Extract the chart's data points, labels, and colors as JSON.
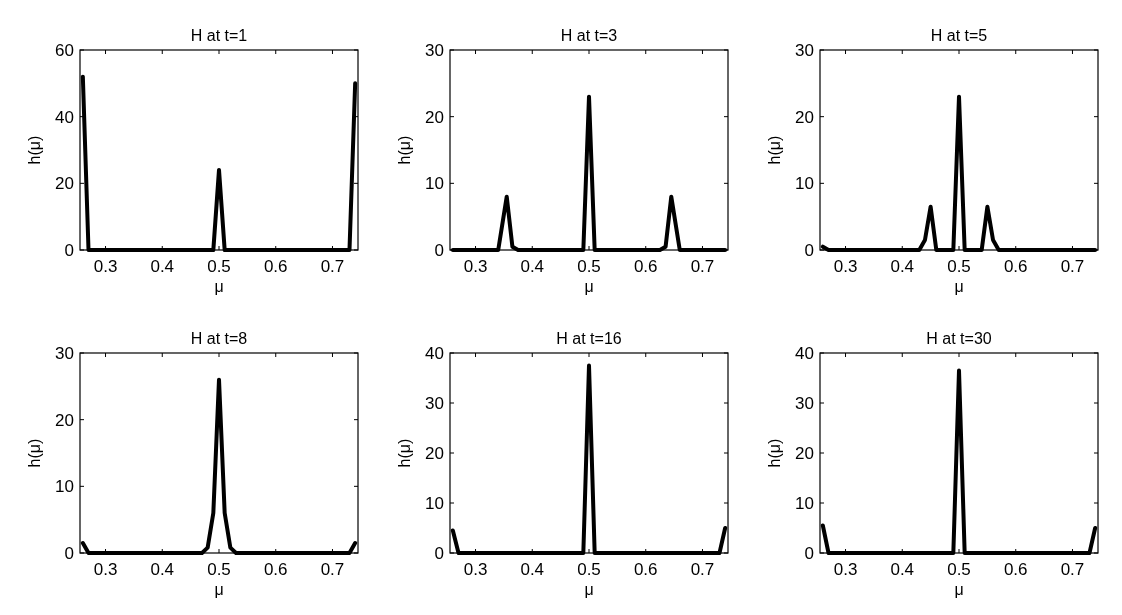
{
  "chart_data": [
    {
      "type": "line",
      "title": "H at t=1",
      "xlabel": "μ",
      "ylabel": "h(μ)",
      "xlim": [
        0.255,
        0.745
      ],
      "xticks": [
        0.3,
        0.4,
        0.5,
        0.6,
        0.7
      ],
      "ylim": [
        0,
        60
      ],
      "yticks": [
        0,
        20,
        40,
        60
      ],
      "series": [
        {
          "color": "#000000",
          "x": [
            0.26,
            0.27,
            0.49,
            0.5,
            0.51,
            0.73,
            0.74
          ],
          "values": [
            52,
            0,
            0,
            24,
            0,
            0,
            50
          ]
        }
      ]
    },
    {
      "type": "line",
      "title": "H at t=3",
      "xlabel": "μ",
      "ylabel": "h(μ)",
      "xlim": [
        0.255,
        0.745
      ],
      "xticks": [
        0.3,
        0.4,
        0.5,
        0.6,
        0.7
      ],
      "ylim": [
        0,
        30
      ],
      "yticks": [
        0,
        10,
        20,
        30
      ],
      "series": [
        {
          "color": "#000000",
          "x": [
            0.26,
            0.34,
            0.355,
            0.365,
            0.375,
            0.49,
            0.5,
            0.51,
            0.625,
            0.635,
            0.645,
            0.66,
            0.74
          ],
          "values": [
            0,
            0,
            8,
            0.5,
            0,
            0,
            23,
            0,
            0,
            0.5,
            8,
            0,
            0
          ]
        }
      ]
    },
    {
      "type": "line",
      "title": "H at t=5",
      "xlabel": "μ",
      "ylabel": "h(μ)",
      "xlim": [
        0.255,
        0.745
      ],
      "xticks": [
        0.3,
        0.4,
        0.5,
        0.6,
        0.7
      ],
      "ylim": [
        0,
        30
      ],
      "yticks": [
        0,
        10,
        20,
        30
      ],
      "series": [
        {
          "color": "#000000",
          "x": [
            0.26,
            0.27,
            0.43,
            0.44,
            0.45,
            0.46,
            0.49,
            0.5,
            0.51,
            0.54,
            0.55,
            0.56,
            0.57,
            0.74
          ],
          "values": [
            0.5,
            0,
            0,
            1.5,
            6.5,
            0,
            0,
            23,
            0,
            0,
            6.5,
            1.5,
            0,
            0
          ]
        }
      ]
    },
    {
      "type": "line",
      "title": "H at t=8",
      "xlabel": "μ",
      "ylabel": "h(μ)",
      "xlim": [
        0.255,
        0.745
      ],
      "xticks": [
        0.3,
        0.4,
        0.5,
        0.6,
        0.7
      ],
      "ylim": [
        0,
        30
      ],
      "yticks": [
        0,
        10,
        20,
        30
      ],
      "series": [
        {
          "color": "#000000",
          "x": [
            0.26,
            0.27,
            0.47,
            0.48,
            0.49,
            0.5,
            0.51,
            0.52,
            0.53,
            0.73,
            0.74
          ],
          "values": [
            1.5,
            0,
            0,
            0.8,
            6,
            26,
            6,
            0.8,
            0,
            0,
            1.5
          ]
        }
      ]
    },
    {
      "type": "line",
      "title": "H at t=16",
      "xlabel": "μ",
      "ylabel": "h(μ)",
      "xlim": [
        0.255,
        0.745
      ],
      "xticks": [
        0.3,
        0.4,
        0.5,
        0.6,
        0.7
      ],
      "ylim": [
        0,
        40
      ],
      "yticks": [
        0,
        10,
        20,
        30,
        40
      ],
      "series": [
        {
          "color": "#000000",
          "x": [
            0.26,
            0.27,
            0.49,
            0.5,
            0.51,
            0.73,
            0.74
          ],
          "values": [
            4.5,
            0,
            0,
            37.5,
            0,
            0,
            5
          ]
        }
      ]
    },
    {
      "type": "line",
      "title": "H at t=30",
      "xlabel": "μ",
      "ylabel": "h(μ)",
      "xlim": [
        0.255,
        0.745
      ],
      "xticks": [
        0.3,
        0.4,
        0.5,
        0.6,
        0.7
      ],
      "ylim": [
        0,
        40
      ],
      "yticks": [
        0,
        10,
        20,
        30,
        40
      ],
      "series": [
        {
          "color": "#000000",
          "x": [
            0.26,
            0.27,
            0.49,
            0.5,
            0.51,
            0.73,
            0.74
          ],
          "values": [
            5.5,
            0,
            0,
            36.5,
            0,
            0,
            5
          ]
        }
      ]
    }
  ]
}
